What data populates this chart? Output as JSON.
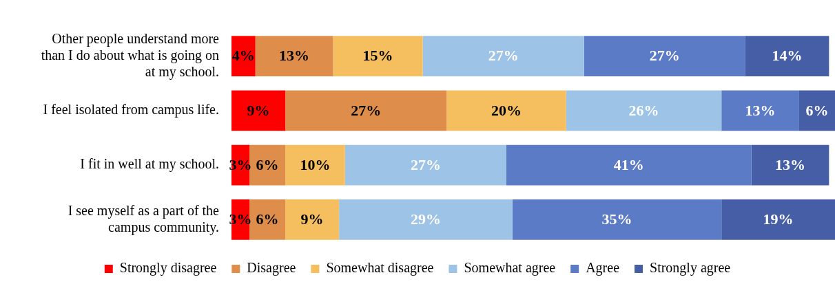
{
  "chart_data": {
    "type": "bar",
    "orientation": "horizontal",
    "stacked": true,
    "categories": [
      "Other people understand more than I do about what is going on at my school.",
      "I feel isolated from campus life.",
      "I fit in well at my school.",
      "I see myself as a part of the campus community."
    ],
    "series": [
      {
        "name": "Strongly disagree",
        "color": "#ff0000",
        "values": [
          4,
          9,
          3,
          3
        ],
        "value_labels": [
          "4%",
          "9%",
          "3%",
          "3%"
        ]
      },
      {
        "name": "Disagree",
        "color": "#de8d4b",
        "values": [
          13,
          27,
          6,
          6
        ],
        "value_labels": [
          "13%",
          "27%",
          "6%",
          "6%"
        ]
      },
      {
        "name": "Somewhat disagree",
        "color": "#f5bf60",
        "values": [
          15,
          20,
          10,
          9
        ],
        "value_labels": [
          "15%",
          "20%",
          "10%",
          "9%"
        ]
      },
      {
        "name": "Somewhat agree",
        "color": "#9dc3e6",
        "values": [
          27,
          26,
          27,
          29
        ],
        "value_labels": [
          "27%",
          "26%",
          "27%",
          "29%"
        ]
      },
      {
        "name": "Agree",
        "color": "#5b7bc6",
        "values": [
          27,
          13,
          41,
          35
        ],
        "value_labels": [
          "27%",
          "13%",
          "41%",
          "35%"
        ]
      },
      {
        "name": "Strongly agree",
        "color": "#455ea6",
        "values": [
          14,
          6,
          13,
          19
        ],
        "value_labels": [
          "14%",
          "6%",
          "13%",
          "19%"
        ]
      }
    ],
    "tick_labels": "y",
    "legend": "bottom"
  }
}
